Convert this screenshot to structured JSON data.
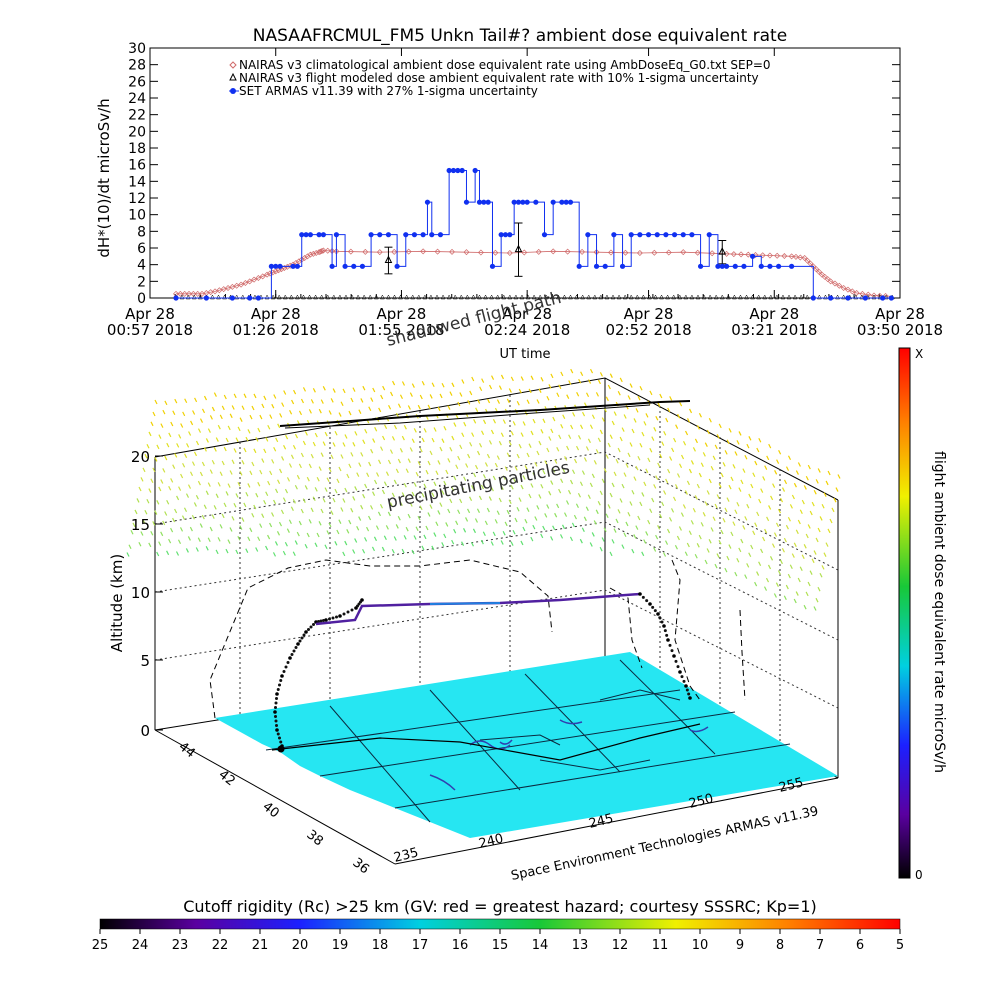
{
  "chart_data": [
    {
      "type": "line",
      "title": "NASAAFRCMUL_FM5 Unkn Tail#? ambient dose equivalent rate",
      "ylabel": "dH*(10)/dt microSv/h",
      "xlabel": "UT time",
      "ylim": [
        0,
        30
      ],
      "yticks": [
        0,
        2,
        4,
        6,
        8,
        10,
        12,
        14,
        16,
        18,
        20,
        22,
        24,
        26,
        28,
        30
      ],
      "xlim_minutes": [
        57,
        230
      ],
      "x_tick_minutes": [
        57,
        86,
        115,
        144,
        172,
        201,
        230
      ],
      "x_tick_labels": [
        {
          "date": "Apr 28",
          "time": "00:57 2018"
        },
        {
          "date": "Apr 28",
          "time": "01:26 2018"
        },
        {
          "date": "Apr 28",
          "time": "01:55 2018"
        },
        {
          "date": "Apr 28",
          "time": "02:24 2018"
        },
        {
          "date": "Apr 28",
          "time": "02:52 2018"
        },
        {
          "date": "Apr 28",
          "time": "03:21 2018"
        },
        {
          "date": "Apr 28",
          "time": "03:50 2018"
        }
      ],
      "legend": [
        {
          "name": "NAIRAS v3 climatological ambient dose equivalent rate using AmbDoseEq_G0.txt SEP=0",
          "marker": "diamond",
          "color": "#d06a6a"
        },
        {
          "name": "NAIRAS v3 flight modeled dose ambient equivalent rate with 10% 1-sigma uncertainty",
          "marker": "triangle",
          "color": "#000000"
        },
        {
          "name": "SET ARMAS v11.39 with 27% 1-sigma uncertainty",
          "marker": "dot",
          "color": "#1030f0"
        }
      ],
      "legend_placement": "top-left",
      "series": [
        {
          "name": "NAIRAS v3 climatological ambient dose equivalent rate using AmbDoseEq_G0.txt SEP=0",
          "color": "#d06a6a",
          "x": [
            63,
            66,
            69,
            72,
            75,
            78,
            81,
            84,
            86,
            88,
            90,
            92,
            94,
            96,
            97,
            100,
            110,
            120,
            130,
            140,
            150,
            160,
            170,
            180,
            190,
            195,
            200,
            205,
            208,
            210,
            212,
            214,
            217,
            220,
            224,
            228
          ],
          "y": [
            0.5,
            0.5,
            0.5,
            0.8,
            1.2,
            1.6,
            2.2,
            2.8,
            3.2,
            3.6,
            4.0,
            4.6,
            5.2,
            5.5,
            5.7,
            5.6,
            5.5,
            5.6,
            5.5,
            5.4,
            5.6,
            5.5,
            5.4,
            5.5,
            5.3,
            5.2,
            5.1,
            5.0,
            4.8,
            3.8,
            2.8,
            2.0,
            1.2,
            0.6,
            0.3,
            0.2
          ]
        },
        {
          "name": "NAIRAS v3 flight modeled dose ambient equivalent rate with 10% 1-sigma uncertainty",
          "color": "#000000",
          "x": [
            63,
            83,
            112,
            142,
            189
          ],
          "y": [
            0,
            0,
            4.5,
            5.8,
            5.5
          ],
          "err": [
            0,
            0,
            1.6,
            3.2,
            1.4
          ]
        },
        {
          "name": "SET ARMAS v11.39 with 27% 1-sigma uncertainty",
          "color": "#1030f0",
          "x": [
            63,
            70,
            76,
            80,
            82,
            85,
            86,
            87,
            90,
            91,
            92,
            93,
            94,
            96,
            97,
            99,
            100,
            102,
            104,
            106,
            108,
            110,
            112,
            114,
            116,
            118,
            120,
            121,
            122,
            124,
            126,
            127,
            128,
            129,
            130,
            132,
            133,
            134,
            135,
            136,
            138,
            139,
            140,
            141,
            142,
            143,
            144,
            146,
            148,
            150,
            152,
            153,
            154,
            156,
            158,
            160,
            162,
            164,
            166,
            168,
            170,
            172,
            174,
            176,
            178,
            180,
            182,
            184,
            186,
            188,
            189,
            190,
            192,
            194,
            196,
            198,
            200,
            202,
            205,
            210,
            214,
            218,
            222,
            226,
            228
          ],
          "y": [
            0,
            0,
            0,
            0,
            0,
            3.8,
            3.8,
            3.8,
            3.8,
            3.8,
            7.6,
            7.6,
            7.6,
            7.6,
            7.6,
            3.8,
            7.6,
            3.8,
            3.8,
            3.8,
            7.6,
            7.6,
            7.6,
            3.8,
            7.6,
            7.6,
            7.6,
            11.5,
            7.6,
            7.6,
            15.3,
            15.3,
            15.3,
            15.3,
            11.5,
            15.3,
            11.5,
            11.5,
            11.5,
            3.8,
            7.6,
            7.6,
            7.6,
            11.5,
            11.5,
            11.5,
            11.5,
            11.5,
            7.6,
            11.5,
            11.5,
            11.5,
            11.5,
            3.8,
            7.6,
            3.8,
            3.8,
            7.6,
            3.8,
            7.6,
            7.6,
            7.6,
            7.6,
            7.6,
            7.6,
            7.6,
            7.6,
            3.8,
            7.6,
            3.8,
            3.8,
            3.8,
            3.8,
            3.8,
            5.0,
            3.8,
            3.8,
            3.8,
            3.8,
            0,
            0,
            0,
            0,
            0,
            0
          ]
        }
      ]
    },
    {
      "type": "scatter",
      "zlabel": "Altitude (km)",
      "zticks": [
        "0",
        "5",
        "10",
        "15",
        "20"
      ],
      "lat_ticks": [
        "44",
        "42",
        "40",
        "38",
        "36"
      ],
      "lon_ticks": [
        "235",
        "240",
        "245",
        "250",
        "255"
      ],
      "credit": "Space Environment Technologies ARMAS v11.39",
      "annotations": [
        "shadowed flight path",
        "precipitating particles"
      ],
      "colorbar": {
        "label": "flight ambient dose equivalent rate microSv/h",
        "top_label": "X",
        "bottom_label": "0"
      },
      "ground_color": "#26e6f2"
    },
    {
      "type": "heatmap",
      "title": "Cutoff rigidity (Rc) >25 km (GV: red = greatest hazard; courtesy SSSRC; Kp=1)",
      "ticks": [
        "25",
        "24",
        "23",
        "22",
        "21",
        "20",
        "19",
        "18",
        "17",
        "16",
        "15",
        "14",
        "13",
        "12",
        "11",
        "10",
        "9",
        "8",
        "7",
        "6",
        "5"
      ]
    }
  ]
}
